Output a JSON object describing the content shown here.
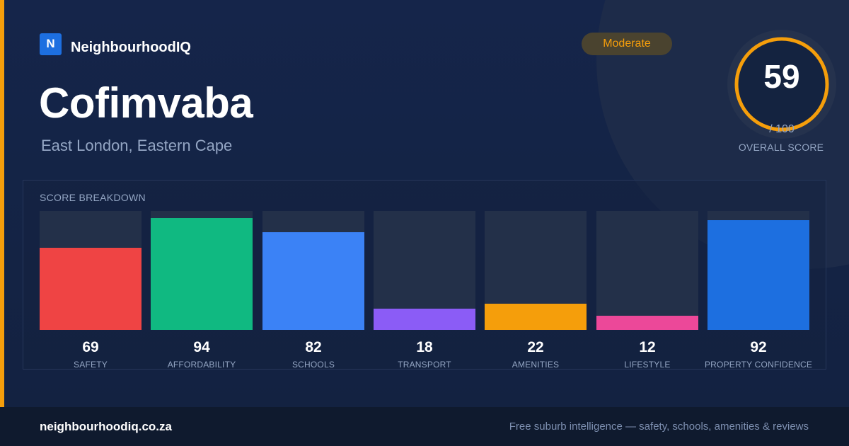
{
  "brand": {
    "logo_letter": "N",
    "name": "NeighbourhoodIQ"
  },
  "suburb": {
    "name": "Cofimvaba",
    "location": "East London, Eastern Cape"
  },
  "rating_badge": "Moderate",
  "overall": {
    "score": 59,
    "max_text": "/ 100",
    "label": "OVERALL SCORE",
    "ring_color": "#f59e0b"
  },
  "breakdown_title": "SCORE BREAKDOWN",
  "chart_data": {
    "type": "bar",
    "title": "SCORE BREAKDOWN",
    "ylim": [
      0,
      100
    ],
    "grid": false,
    "categories": [
      "SAFETY",
      "AFFORDABILITY",
      "SCHOOLS",
      "TRANSPORT",
      "AMENITIES",
      "LIFESTYLE",
      "PROPERTY CONFIDENCE"
    ],
    "values": [
      69,
      94,
      82,
      18,
      22,
      12,
      92
    ],
    "colors": [
      "#ef4444",
      "#10b981",
      "#3b82f6",
      "#8b5cf6",
      "#f59e0b",
      "#ec4899",
      "#1d6fe0"
    ]
  },
  "footer": {
    "domain": "neighbourhoodiq.co.za",
    "tagline": "Free suburb intelligence — safety, schools, amenities & reviews"
  },
  "colors": {
    "accent": "#f59e0b",
    "background": "#132340",
    "footer": "#0f1a2e"
  }
}
